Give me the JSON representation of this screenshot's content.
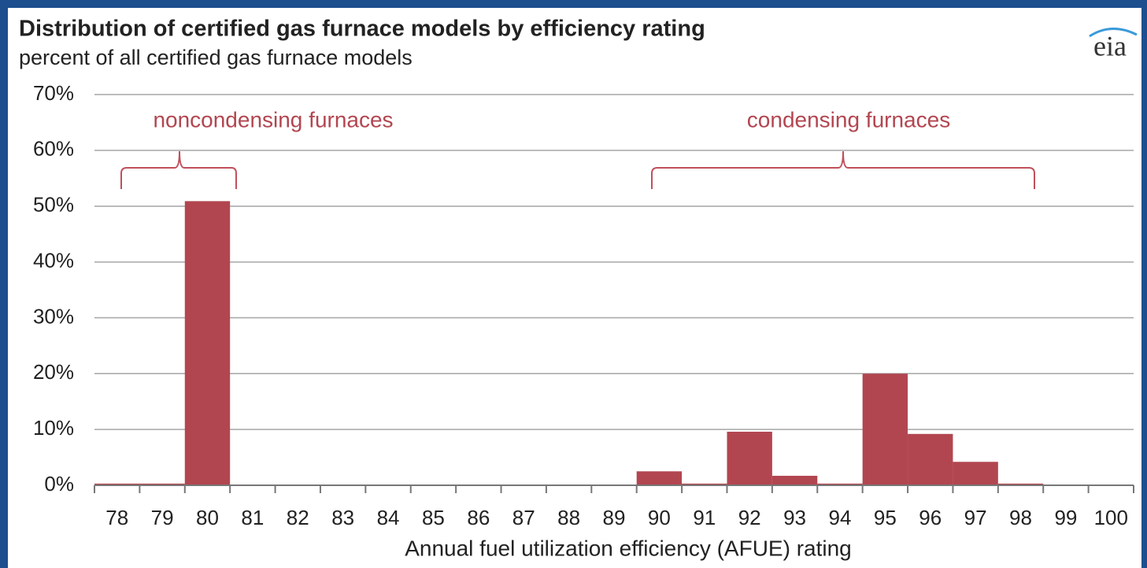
{
  "chart_data": {
    "type": "bar",
    "title": "Distribution  of certified gas furnace models by efficiency rating",
    "subtitle": "percent of all certified gas furnace models",
    "logo": "eia",
    "x_label": "Annual fuel utilization efficiency (AFUE) rating",
    "annotations": [
      "noncondensing  furnaces",
      "condensing  furnaces"
    ],
    "categories": [
      "78",
      "79",
      "80",
      "81",
      "82",
      "83",
      "84",
      "85",
      "86",
      "87",
      "88",
      "89",
      "90",
      "91",
      "92",
      "93",
      "94",
      "95",
      "96",
      "97",
      "98",
      "99",
      "100"
    ],
    "values": [
      0.3,
      0.3,
      50.9,
      0,
      0,
      0,
      0,
      0,
      0,
      0,
      0,
      0,
      2.5,
      0.3,
      9.6,
      1.7,
      0.3,
      20,
      9.2,
      4.2,
      0.3,
      0,
      0
    ],
    "color": "#b24650",
    "ylim": [
      0,
      70
    ],
    "yticks": [
      {
        "value": 0,
        "label": "0%"
      },
      {
        "value": 10,
        "label": "10%"
      },
      {
        "value": 20,
        "label": "20%"
      },
      {
        "value": 30,
        "label": "30%"
      },
      {
        "value": 40,
        "label": "40%"
      },
      {
        "value": 50,
        "label": "50%"
      },
      {
        "value": 60,
        "label": "60%"
      },
      {
        "value": 70,
        "label": "70%"
      }
    ],
    "grid": true
  }
}
